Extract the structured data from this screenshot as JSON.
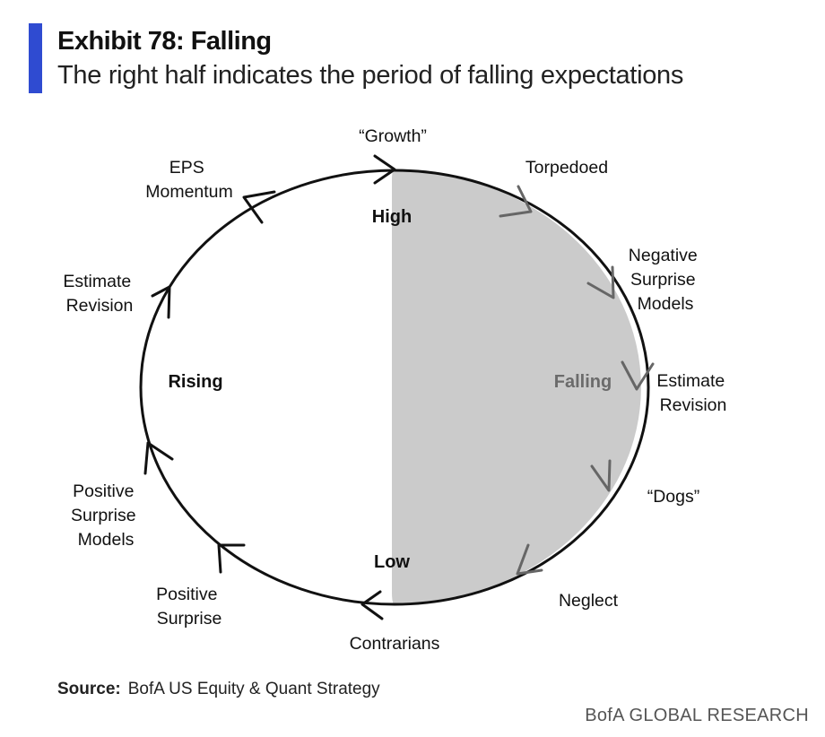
{
  "header": {
    "title": "Exhibit 78: Falling",
    "subtitle": "The right half indicates the period of falling expectations"
  },
  "diagram": {
    "top_label": "“Growth”",
    "bottom_label": "Contrarians",
    "center_labels": {
      "high": "High",
      "low": "Low",
      "rising": "Rising",
      "falling": "Falling"
    },
    "left_side": {
      "eps_momentum": [
        "EPS",
        "Momentum"
      ],
      "estimate_revision": [
        "Estimate",
        "Revision"
      ],
      "positive_surprise_models": [
        "Positive",
        "Surprise",
        "Models"
      ],
      "positive_surprise": [
        "Positive",
        "Surprise"
      ]
    },
    "right_side": {
      "torpedoed": "Torpedoed",
      "negative_surprise_models": [
        "Negative",
        "Surprise",
        "Models"
      ],
      "estimate_revision": [
        "Estimate",
        "Revision"
      ],
      "dogs": "“Dogs”",
      "neglect": "Neglect"
    },
    "colors": {
      "shaded_half": "#cbcbcb",
      "circle": "#111111",
      "falling_text": "#6b6b6b"
    }
  },
  "footer": {
    "source_label": "Source:",
    "source_text": "BofA US Equity & Quant Strategy",
    "brand": "BofA GLOBAL RESEARCH"
  },
  "colors": {
    "accent": "#2f4bd1"
  }
}
